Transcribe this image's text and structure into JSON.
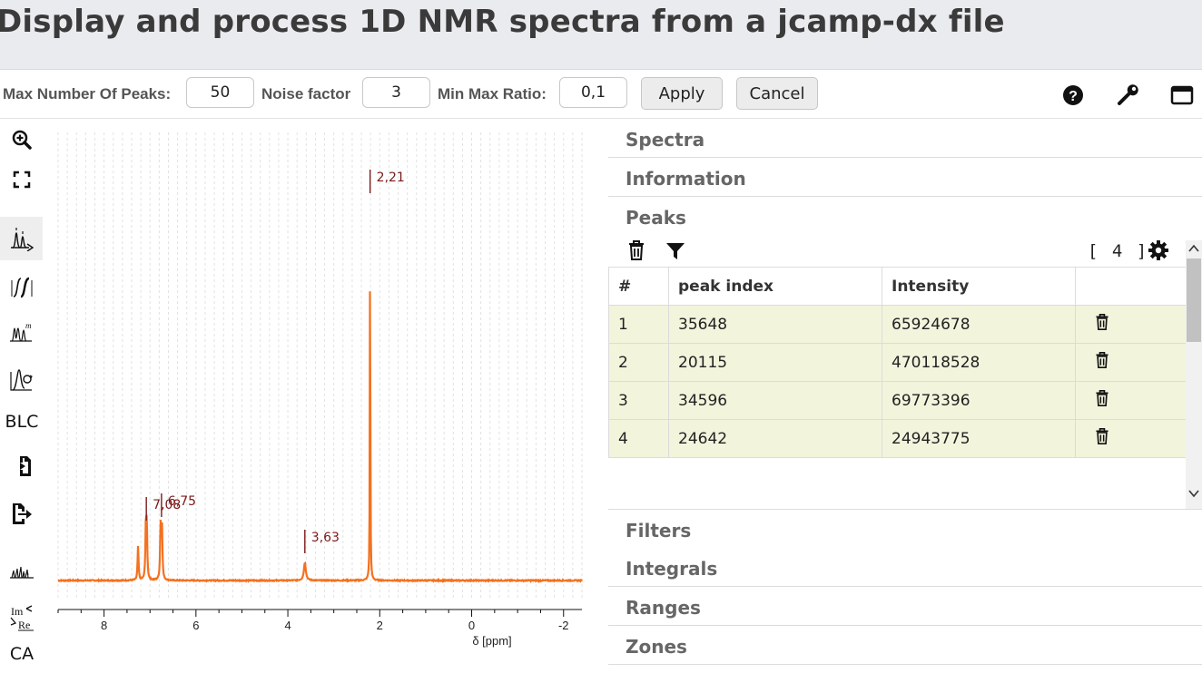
{
  "header": {
    "title": "Display and process 1D NMR spectra from a jcamp-dx file"
  },
  "peak_toolbar": {
    "max_peaks_label": "Max Number Of Peaks:",
    "max_peaks_value": "50",
    "noise_label": "Noise factor",
    "noise_value": "3",
    "ratio_label": "Min Max Ratio:",
    "ratio_value": "0,1",
    "apply_label": "Apply",
    "cancel_label": "Cancel",
    "icons": [
      "help-icon",
      "wrench-icon",
      "window-icon"
    ]
  },
  "left_toolbar": {
    "tools": [
      "zoom-in-icon",
      "fit-fullscreen-icon",
      "peak-picking-icon",
      "integral-icon",
      "multiplet-icon",
      "phase-correction-icon",
      "baseline-correction",
      "import-icon",
      "export-icon",
      "spectrum-stack-icon",
      "real-imaginary-icon",
      "ca"
    ],
    "blc_label": "BLC",
    "ca_label": "CA"
  },
  "spectrum": {
    "color": "#f4711f",
    "peak_label_color": "#7a1a1a",
    "peak_labels": [
      {
        "ppm": 2.21,
        "label": "2,21"
      },
      {
        "ppm": 7.08,
        "label": "7,08"
      },
      {
        "ppm": 6.75,
        "label": "6,75"
      },
      {
        "ppm": 3.63,
        "label": "3,63"
      }
    ],
    "x_axis": {
      "label": "δ [ppm]",
      "ticks": [
        "8",
        "6",
        "4",
        "2",
        "0",
        "-2"
      ],
      "range": [
        9.0,
        -2.4
      ],
      "reversed": true
    },
    "grid": true
  },
  "right_panel": {
    "sections_top": [
      "Spectra",
      "Information",
      "Peaks"
    ],
    "sections_bottom": [
      "Filters",
      "Integrals",
      "Ranges",
      "Zones"
    ],
    "peaks": {
      "count_text": "[ 4 ]",
      "columns": [
        "#",
        "peak index",
        "Intensity",
        ""
      ],
      "rows": [
        {
          "n": "1",
          "index": "35648",
          "intensity": "65924678"
        },
        {
          "n": "2",
          "index": "20115",
          "intensity": "470118528"
        },
        {
          "n": "3",
          "index": "34596",
          "intensity": "69773396"
        },
        {
          "n": "4",
          "index": "24642",
          "intensity": "24943775"
        }
      ]
    }
  }
}
